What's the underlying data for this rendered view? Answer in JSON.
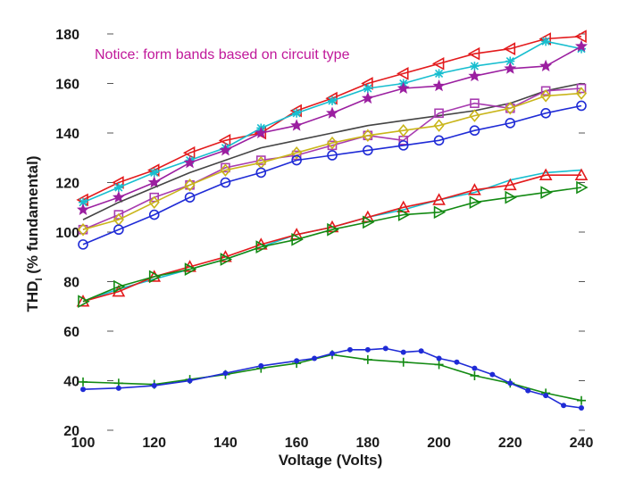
{
  "chart_data": {
    "type": "line",
    "annotation": "Notice: form bands based on circuit type",
    "xlabel": "Voltage (Volts)",
    "ylabel": "THD",
    "ylabel_sub": "I",
    "ylabel_rest": " (% fundamental)",
    "xlim": [
      100,
      240
    ],
    "ylim": [
      20,
      180
    ],
    "xticks": [
      100,
      120,
      140,
      160,
      180,
      200,
      220,
      240
    ],
    "yticks": [
      20,
      40,
      60,
      80,
      100,
      120,
      140,
      160,
      180
    ],
    "grid": false,
    "series": [
      {
        "color": "#e31a1c",
        "marker": "tri-left",
        "x": [
          100,
          110,
          120,
          130,
          140,
          150,
          160,
          170,
          180,
          190,
          200,
          210,
          220,
          230,
          240
        ],
        "y": [
          113,
          120,
          125,
          132,
          137,
          140,
          149,
          154,
          160,
          164,
          168,
          172,
          174,
          178,
          179
        ]
      },
      {
        "color": "#17becf",
        "marker": "star",
        "x": [
          100,
          110,
          120,
          130,
          140,
          150,
          160,
          170,
          180,
          190,
          200,
          210,
          220,
          230,
          240
        ],
        "y": [
          112,
          118,
          124,
          129,
          134,
          142,
          148,
          153,
          158,
          160,
          164,
          167,
          169,
          177,
          174
        ]
      },
      {
        "color": "#9b1fa0",
        "marker": "hexstar",
        "x": [
          100,
          110,
          120,
          130,
          140,
          150,
          160,
          170,
          180,
          190,
          200,
          210,
          220,
          230,
          240
        ],
        "y": [
          109,
          114,
          120,
          128,
          133,
          140,
          143,
          148,
          154,
          158,
          159,
          163,
          166,
          167,
          175
        ]
      },
      {
        "color": "#444444",
        "marker": "none",
        "x": [
          100,
          110,
          120,
          130,
          140,
          150,
          160,
          170,
          180,
          190,
          200,
          210,
          220,
          230,
          240
        ],
        "y": [
          105,
          112,
          118,
          124,
          129,
          134,
          137,
          140,
          143,
          145,
          147,
          149,
          152,
          157,
          160
        ]
      },
      {
        "color": "#a83cb0",
        "marker": "square",
        "x": [
          100,
          110,
          120,
          130,
          140,
          150,
          160,
          170,
          180,
          190,
          200,
          210,
          220,
          230,
          240
        ],
        "y": [
          101,
          107,
          114,
          119,
          126,
          129,
          131,
          135,
          139,
          137,
          148,
          152,
          150,
          157,
          158
        ]
      },
      {
        "color": "#c9b51a",
        "marker": "diamond",
        "x": [
          100,
          110,
          120,
          130,
          140,
          150,
          160,
          170,
          180,
          190,
          200,
          210,
          220,
          230,
          240
        ],
        "y": [
          101,
          105,
          112,
          119,
          125,
          128,
          132,
          136,
          139,
          141,
          143,
          147,
          150,
          155,
          156
        ]
      },
      {
        "color": "#1f2bd6",
        "marker": "circle",
        "x": [
          100,
          110,
          120,
          130,
          140,
          150,
          160,
          170,
          180,
          190,
          200,
          210,
          220,
          230,
          240
        ],
        "y": [
          95,
          101,
          107,
          114,
          120,
          124,
          129,
          131,
          133,
          135,
          137,
          141,
          144,
          148,
          151
        ]
      },
      {
        "color": "#17becf",
        "marker": "none",
        "x": [
          100,
          110,
          120,
          130,
          140,
          150,
          160,
          170,
          180,
          190,
          200,
          210,
          220,
          230,
          240
        ],
        "y": [
          72,
          77,
          81,
          85,
          89,
          94,
          99,
          102,
          106,
          109,
          113,
          116,
          121,
          124,
          125
        ]
      },
      {
        "color": "#e31a1c",
        "marker": "tri-up",
        "x": [
          100,
          110,
          120,
          130,
          140,
          150,
          160,
          170,
          180,
          190,
          200,
          210,
          220,
          230,
          240
        ],
        "y": [
          72,
          76,
          82,
          86,
          90,
          95,
          99,
          102,
          106,
          110,
          113,
          117,
          119,
          123,
          123
        ]
      },
      {
        "color": "#138a13",
        "marker": "tri-right",
        "x": [
          100,
          110,
          120,
          130,
          140,
          150,
          160,
          170,
          180,
          190,
          200,
          210,
          220,
          230,
          240
        ],
        "y": [
          72,
          78,
          82,
          85,
          89,
          94,
          97,
          101,
          104,
          107,
          108,
          112,
          114,
          116,
          118
        ]
      },
      {
        "color": "#138a13",
        "marker": "plus",
        "x": [
          100,
          110,
          120,
          130,
          140,
          150,
          160,
          170,
          180,
          190,
          200,
          210,
          220,
          230,
          240
        ],
        "y": [
          39.5,
          39,
          38.5,
          40.5,
          42.5,
          45,
          47,
          50.5,
          48.5,
          47.5,
          46.5,
          42,
          39,
          35,
          32
        ]
      },
      {
        "color": "#1f2bd6",
        "marker": "dot",
        "x": [
          100,
          110,
          120,
          130,
          140,
          150,
          160,
          165,
          170,
          175,
          180,
          185,
          190,
          195,
          200,
          205,
          210,
          215,
          220,
          225,
          230,
          235,
          240
        ],
        "y": [
          36.5,
          37,
          38,
          40,
          43,
          46,
          48,
          49,
          51,
          52.5,
          52.5,
          53,
          51.5,
          52,
          49,
          47.5,
          45,
          42.5,
          39,
          36,
          34,
          30,
          29
        ]
      }
    ]
  }
}
